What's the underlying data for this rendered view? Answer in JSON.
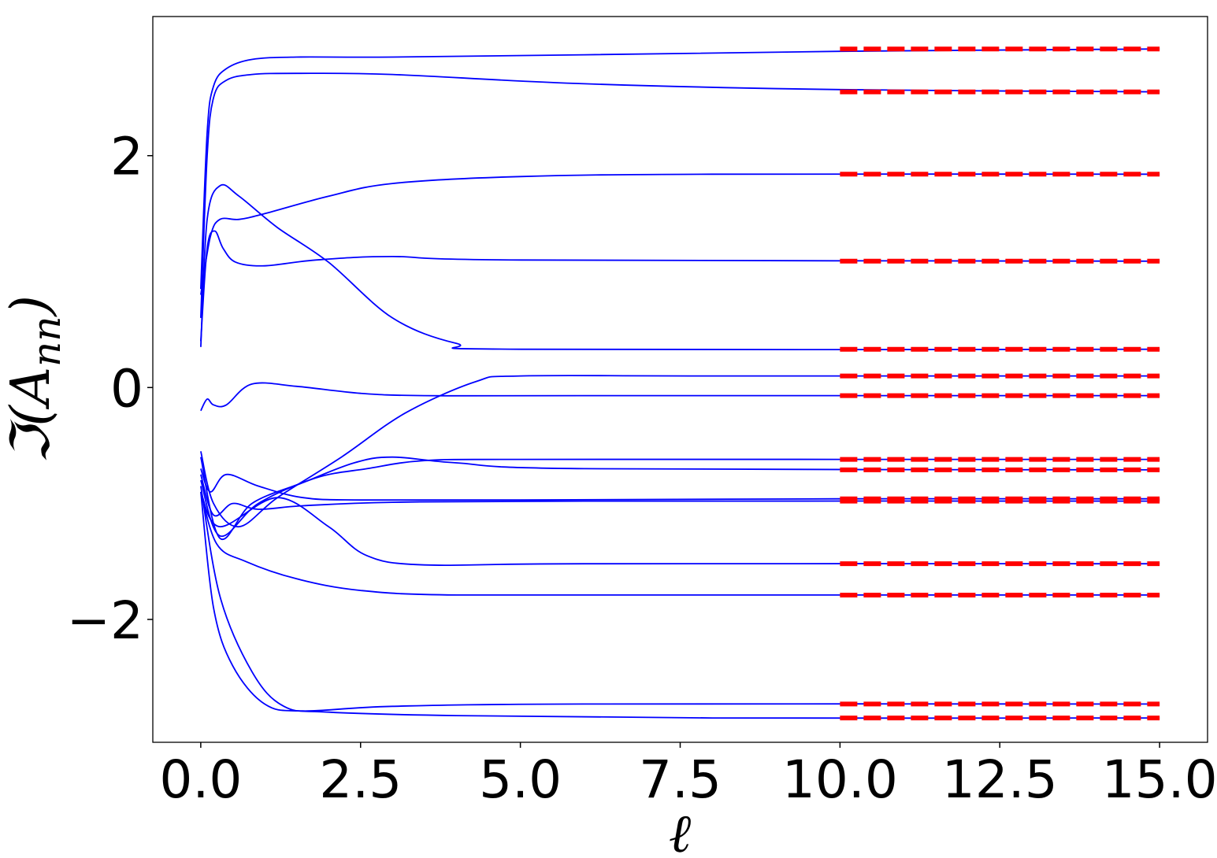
{
  "chart_data": {
    "type": "line",
    "title": "",
    "xlabel": "ℓ",
    "ylabel": "ℑ(A_nn)",
    "ylabel_parts": {
      "prefix": "ℑ(A",
      "subscript": "nn",
      "suffix": ")"
    },
    "xlim": [
      -0.75,
      15.75
    ],
    "ylim": [
      -3.06,
      3.2
    ],
    "xticks": [
      0.0,
      2.5,
      5.0,
      7.5,
      10.0,
      12.5,
      15.0
    ],
    "xtick_labels": [
      "0.0",
      "2.5",
      "5.0",
      "7.5",
      "10.0",
      "12.5",
      "15.0"
    ],
    "yticks": [
      -2,
      0,
      2
    ],
    "ytick_labels": [
      "−2",
      "0",
      "2"
    ],
    "grid": false,
    "legend": "none",
    "colors": {
      "flow": "#0000ff",
      "reference": "#ff0000"
    },
    "flow_series": [
      {
        "points": [
          [
            0,
            0.85
          ],
          [
            0.1,
            2.2
          ],
          [
            0.2,
            2.6
          ],
          [
            0.4,
            2.75
          ],
          [
            0.8,
            2.83
          ],
          [
            1.5,
            2.85
          ],
          [
            3,
            2.85
          ],
          [
            6,
            2.87
          ],
          [
            10,
            2.9
          ],
          [
            15,
            2.92
          ]
        ]
      },
      {
        "points": [
          [
            0,
            0.6
          ],
          [
            0.1,
            2.0
          ],
          [
            0.2,
            2.5
          ],
          [
            0.4,
            2.65
          ],
          [
            0.8,
            2.7
          ],
          [
            1.5,
            2.71
          ],
          [
            3,
            2.7
          ],
          [
            6,
            2.62
          ],
          [
            10,
            2.57
          ],
          [
            15,
            2.55
          ]
        ]
      },
      {
        "points": [
          [
            0,
            0.8
          ],
          [
            0.15,
            1.3
          ],
          [
            0.3,
            1.45
          ],
          [
            0.6,
            1.45
          ],
          [
            1,
            1.5
          ],
          [
            2,
            1.65
          ],
          [
            3,
            1.76
          ],
          [
            5,
            1.82
          ],
          [
            8,
            1.84
          ],
          [
            15,
            1.84
          ]
        ]
      },
      {
        "points": [
          [
            0,
            0.4
          ],
          [
            0.1,
            1.2
          ],
          [
            0.22,
            1.35
          ],
          [
            0.35,
            1.2
          ],
          [
            0.55,
            1.08
          ],
          [
            1,
            1.05
          ],
          [
            1.8,
            1.1
          ],
          [
            3,
            1.13
          ],
          [
            5,
            1.1
          ],
          [
            15,
            1.09
          ]
        ]
      },
      {
        "points": [
          [
            0,
            0.35
          ],
          [
            0.1,
            1.45
          ],
          [
            0.3,
            1.74
          ],
          [
            0.6,
            1.65
          ],
          [
            1.2,
            1.38
          ],
          [
            2,
            1.08
          ],
          [
            3,
            0.6
          ],
          [
            4,
            0.38
          ],
          [
            5,
            0.33
          ],
          [
            15,
            0.33
          ]
        ]
      },
      {
        "points": [
          [
            0,
            -0.2
          ],
          [
            0.1,
            -0.1
          ],
          [
            0.2,
            -0.15
          ],
          [
            0.4,
            -0.15
          ],
          [
            0.8,
            0.03
          ],
          [
            1.5,
            0.01
          ],
          [
            2.5,
            -0.05
          ],
          [
            3.5,
            -0.07
          ],
          [
            6,
            -0.07
          ],
          [
            15,
            -0.07
          ]
        ]
      },
      {
        "points": [
          [
            0,
            -0.55
          ],
          [
            0.2,
            -1.0
          ],
          [
            0.6,
            -1.2
          ],
          [
            1.2,
            -0.95
          ],
          [
            2.2,
            -0.6
          ],
          [
            3.2,
            -0.22
          ],
          [
            4.3,
            0.05
          ],
          [
            5,
            0.1
          ],
          [
            8,
            0.1
          ],
          [
            15,
            0.1
          ]
        ]
      },
      {
        "points": [
          [
            0,
            -0.7
          ],
          [
            0.15,
            -0.9
          ],
          [
            0.4,
            -0.75
          ],
          [
            0.9,
            -0.85
          ],
          [
            1.6,
            -0.95
          ],
          [
            2.5,
            -0.97
          ],
          [
            5,
            -0.97
          ],
          [
            10,
            -0.96
          ],
          [
            15,
            -0.96
          ]
        ]
      },
      {
        "points": [
          [
            0,
            -0.75
          ],
          [
            0.2,
            -1.1
          ],
          [
            0.5,
            -1.0
          ],
          [
            0.9,
            -1.05
          ],
          [
            1.6,
            -1.02
          ],
          [
            3,
            -0.99
          ],
          [
            6,
            -0.98
          ],
          [
            15,
            -0.98
          ]
        ]
      },
      {
        "points": [
          [
            0,
            -0.6
          ],
          [
            0.3,
            -1.3
          ],
          [
            0.8,
            -1.0
          ],
          [
            1.6,
            -0.82
          ],
          [
            2.4,
            -0.65
          ],
          [
            3,
            -0.6
          ],
          [
            4,
            -0.65
          ],
          [
            6,
            -0.7
          ],
          [
            15,
            -0.71
          ]
        ]
      },
      {
        "points": [
          [
            0,
            -0.8
          ],
          [
            0.3,
            -1.28
          ],
          [
            0.9,
            -1.0
          ],
          [
            1.8,
            -0.78
          ],
          [
            2.6,
            -0.7
          ],
          [
            3.5,
            -0.63
          ],
          [
            5,
            -0.62
          ],
          [
            10,
            -0.62
          ],
          [
            15,
            -0.62
          ]
        ]
      },
      {
        "points": [
          [
            0,
            -0.9
          ],
          [
            0.3,
            -1.2
          ],
          [
            1.2,
            -0.95
          ],
          [
            2,
            -1.2
          ],
          [
            2.6,
            -1.45
          ],
          [
            3.5,
            -1.53
          ],
          [
            6,
            -1.52
          ],
          [
            15,
            -1.52
          ]
        ]
      },
      {
        "points": [
          [
            0,
            -0.9
          ],
          [
            0.25,
            -1.35
          ],
          [
            0.7,
            -1.5
          ],
          [
            1.5,
            -1.65
          ],
          [
            2.5,
            -1.75
          ],
          [
            4,
            -1.79
          ],
          [
            8,
            -1.79
          ],
          [
            15,
            -1.79
          ]
        ]
      },
      {
        "points": [
          [
            0,
            -0.9
          ],
          [
            0.2,
            -1.9
          ],
          [
            0.5,
            -2.4
          ],
          [
            1.0,
            -2.73
          ],
          [
            1.6,
            -2.79
          ],
          [
            3,
            -2.75
          ],
          [
            6,
            -2.73
          ],
          [
            15,
            -2.73
          ]
        ]
      },
      {
        "points": [
          [
            0,
            -0.85
          ],
          [
            0.3,
            -1.8
          ],
          [
            0.8,
            -2.45
          ],
          [
            1.3,
            -2.75
          ],
          [
            2,
            -2.8
          ],
          [
            4,
            -2.83
          ],
          [
            8,
            -2.85
          ],
          [
            15,
            -2.85
          ]
        ]
      }
    ],
    "reference_series": {
      "x_range": [
        10,
        15
      ],
      "values": [
        2.92,
        2.55,
        1.84,
        1.09,
        0.33,
        0.1,
        -0.07,
        -0.62,
        -0.71,
        -0.96,
        -0.98,
        -1.52,
        -1.79,
        -2.73,
        -2.85
      ]
    }
  }
}
